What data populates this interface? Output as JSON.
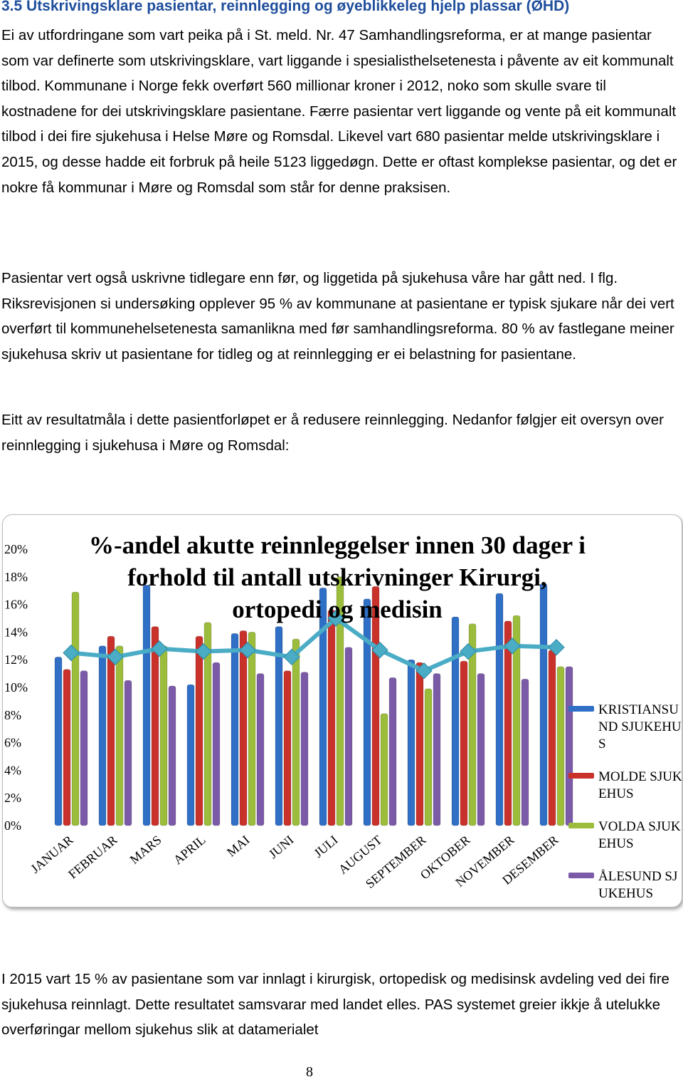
{
  "heading": "3.5 Utskrivingsklare pasientar, reinnlegging  og øyeblikkeleg hjelp plassar (ØHD)",
  "paragraphs": [
    "Ei av utfordringane som vart peika på i St. meld. Nr. 47 Samhandlingsreforma, er at mange pasientar som var definerte som utskrivingsklare, vart liggande i spesialisthelsetenesta i påvente av eit kommunalt tilbod. Kommunane i Norge fekk overført 560 millionar kroner i 2012, noko som skulle svare til kostnadene for dei utskrivingsklare pasientane. Færre pasientar vert liggande og vente på eit kommunalt tilbod i dei fire sjukehusa i Helse Møre og Romsdal. Likevel vart 680 pasientar melde utskrivingsklare i 2015, og desse hadde eit forbruk på heile 5123 liggedøgn. Dette er oftast komplekse pasientar, og det er nokre få kommunar i Møre og Romsdal som står for denne praksisen.",
    "Pasientar vert også uskrivne tidlegare enn før, og liggetida på sjukehusa våre har gått ned. I flg. Riksrevisjonen si undersøking opplever 95 % av kommunane at pasientane er typisk sjukare når dei vert overført til kommunehelsetenesta samanlikna med før samhandlingsreforma. 80 % av fastlegane meiner sjukehusa skriv ut pasientane for tidleg og at reinnlegging er ei belastning for pasientane.",
    "Eitt av resultatmåla i dette pasientforløpet er å redusere reinnlegging. Nedanfor følgjer eit oversyn over reinnlegging i sjukehusa i Møre og Romsdal:",
    "I 2015 vart 15 % av pasientane  som var innlagt i kirurgisk, ortopedisk og medisinsk avdeling ved dei fire sjukehusa reinnlagt. Dette resultatet samsvarar med landet elles. PAS systemet greier ikkje å utelukke overføringar mellom sjukehus slik at datamerialet"
  ],
  "page_number": "8",
  "chart_data": {
    "type": "bar",
    "title": "%-andel akutte reinnleggelser innen 30 dager i forhold til antall utskrivninger Kirurgi, ortopedi og medisin",
    "categories": [
      "JANUAR",
      "FEBRUAR",
      "MARS",
      "APRIL",
      "MAI",
      "JUNI",
      "JULI",
      "AUGUST",
      "SEPTEMBER",
      "OKTOBER",
      "NOVEMBER",
      "DESEMBER"
    ],
    "series": [
      {
        "name": "KRISTIANSUND SJUKEHUS",
        "color": "#2f6fc6",
        "values": [
          12.2,
          13.0,
          17.4,
          10.2,
          13.9,
          14.4,
          17.2,
          16.4,
          12.0,
          15.1,
          16.8,
          17.5
        ]
      },
      {
        "name": "MOLDE SJUKEHUS",
        "color": "#c9312b",
        "values": [
          11.3,
          13.7,
          14.4,
          13.7,
          14.1,
          11.2,
          15.6,
          17.3,
          11.8,
          11.9,
          14.8,
          12.7
        ]
      },
      {
        "name": "VOLDA SJUKEHUS",
        "color": "#9cbd3c",
        "values": [
          16.9,
          13.0,
          13.0,
          14.7,
          14.0,
          13.5,
          18.0,
          8.1,
          9.9,
          14.6,
          15.2,
          11.5
        ]
      },
      {
        "name": "ÅLESUND SJUKEHUS",
        "color": "#7b5ba8",
        "values": [
          11.2,
          10.5,
          10.1,
          11.8,
          11.0,
          11.1,
          12.9,
          10.7,
          11.0,
          11.0,
          10.6,
          11.5
        ]
      },
      {
        "type": "line",
        "color": "#4bacc6",
        "values": [
          12.5,
          12.2,
          12.8,
          12.6,
          12.7,
          12.2,
          15.0,
          12.7,
          11.2,
          12.6,
          13.0,
          12.9
        ]
      }
    ],
    "ylim": [
      0,
      20
    ],
    "yticks": [
      {
        "value": 0,
        "label": "0%"
      },
      {
        "value": 2,
        "label": "2%"
      },
      {
        "value": 4,
        "label": "4%"
      },
      {
        "value": 6,
        "label": "6%"
      },
      {
        "value": 8,
        "label": "8%"
      },
      {
        "value": 10,
        "label": "10%"
      },
      {
        "value": 12,
        "label": "12%"
      },
      {
        "value": 14,
        "label": "14%"
      },
      {
        "value": 16,
        "label": "16%"
      },
      {
        "value": 18,
        "label": "18%"
      },
      {
        "value": 20,
        "label": "20%"
      }
    ],
    "legend": "right"
  }
}
